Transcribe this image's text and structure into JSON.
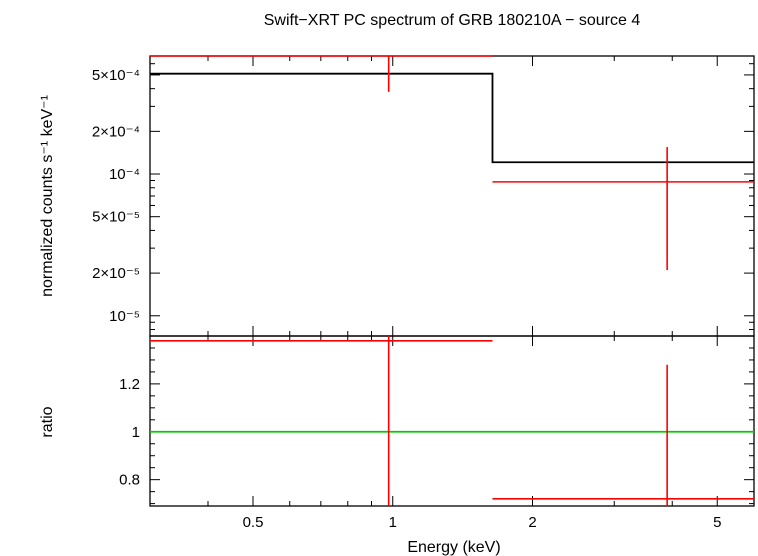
{
  "chart_data": {
    "type": "line",
    "title": "Swift−XRT PC spectrum of GRB 180210A − source 4",
    "xlabel": "Energy (keV)",
    "x_scale": "log",
    "xlim": [
      0.3,
      6.0
    ],
    "x_ticks": [
      {
        "value": 0.5,
        "label": "0.5"
      },
      {
        "value": 1,
        "label": "1"
      },
      {
        "value": 2,
        "label": "2"
      },
      {
        "value": 5,
        "label": "5"
      }
    ],
    "panels": [
      {
        "id": "spectrum",
        "ylabel": "normalized counts s⁻¹ keV⁻¹",
        "y_scale": "log",
        "ylim": [
          7.2e-06,
          0.00068
        ],
        "y_ticks": [
          {
            "value": 0.0005,
            "label": "5×10⁻⁴"
          },
          {
            "value": 0.0002,
            "label": "2×10⁻⁴"
          },
          {
            "value": 0.0001,
            "label": "10⁻⁴"
          },
          {
            "value": 5e-05,
            "label": "5×10⁻⁵"
          },
          {
            "value": 2e-05,
            "label": "2×10⁻⁵"
          },
          {
            "value": 1e-05,
            "label": "10⁻⁵"
          }
        ],
        "series": [
          {
            "type": "step",
            "color": "#000000",
            "steps": [
              {
                "x_lo": 0.3,
                "x_hi": 1.64,
                "y": 0.00051
              },
              {
                "x_lo": 1.64,
                "x_hi": 6.0,
                "y": 0.000121
              }
            ]
          },
          {
            "type": "errorbar",
            "color": "#ff0000",
            "points": [
              {
                "x_lo": 0.3,
                "x_hi": 1.64,
                "x": 0.98,
                "y": 0.00068,
                "y_lo": 0.00038,
                "y_hi": 0.00068
              },
              {
                "x_lo": 1.64,
                "x_hi": 6.0,
                "x": 3.9,
                "y": 8.8e-05,
                "y_lo": 2.1e-05,
                "y_hi": 0.000155
              }
            ]
          }
        ]
      },
      {
        "id": "ratio",
        "ylabel": "ratio",
        "y_scale": "linear",
        "ylim": [
          0.69,
          1.4
        ],
        "y_ticks": [
          {
            "value": 0.8,
            "label": "0.8"
          },
          {
            "value": 1,
            "label": "1"
          },
          {
            "value": 1.2,
            "label": "1.2"
          }
        ],
        "series": [
          {
            "type": "hline",
            "color": "#00cc00",
            "y": 1
          },
          {
            "type": "errorbar",
            "color": "#ff0000",
            "points": [
              {
                "x_lo": 0.3,
                "x_hi": 1.64,
                "x": 0.98,
                "y": 1.38,
                "y_lo": 0.69,
                "y_hi": 1.4
              },
              {
                "x_lo": 1.64,
                "x_hi": 6.0,
                "x": 3.9,
                "y": 0.72,
                "y_lo": 0.69,
                "y_hi": 1.28
              }
            ]
          }
        ]
      }
    ]
  }
}
